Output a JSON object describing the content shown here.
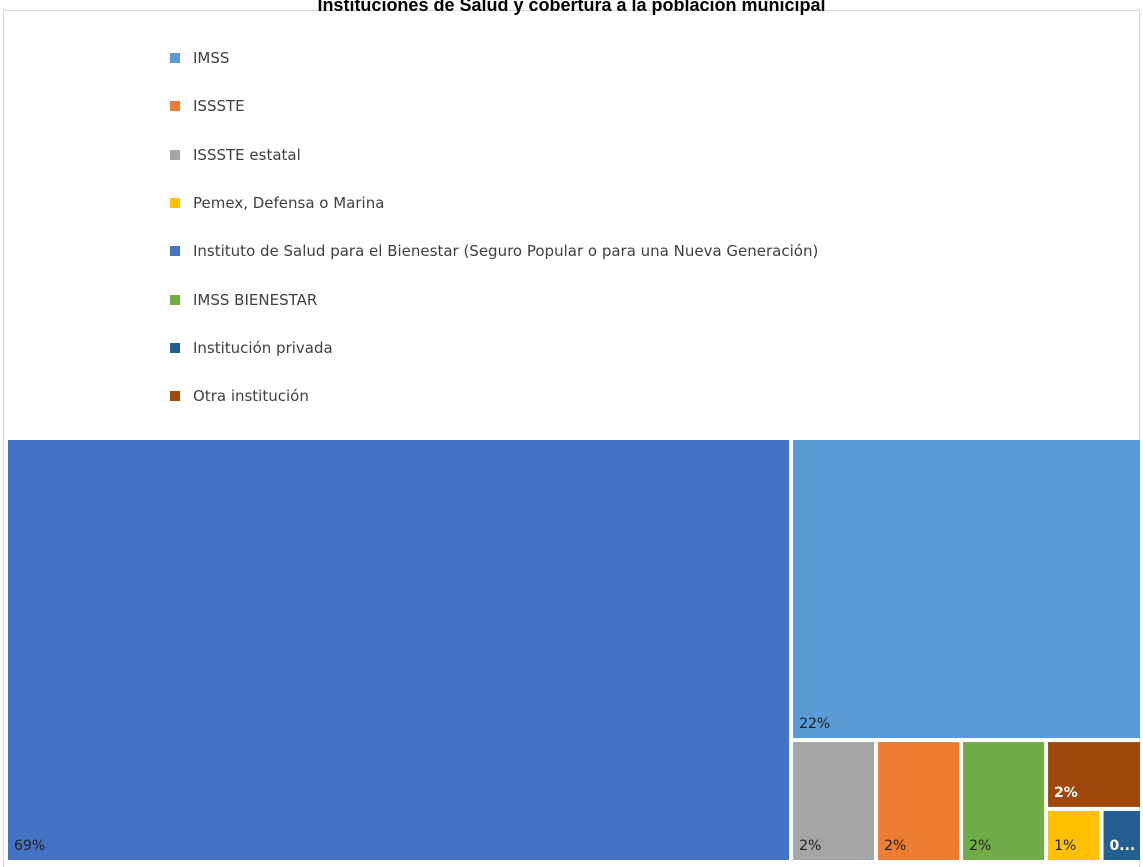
{
  "chart_data": {
    "type": "treemap",
    "title": "Instituciones de Salud y cobertura a la población municipal",
    "legend_position": "top",
    "series": [
      {
        "name": "Instituto de Salud para el Bienestar (Seguro Popular o para una Nueva Generación)",
        "value": 69,
        "label": "69%",
        "color": "#4472C4",
        "label_color": "#1f1f1f"
      },
      {
        "name": "IMSS",
        "value": 22,
        "label": "22%",
        "color": "#5B9BD5",
        "label_color": "#1f1f1f"
      },
      {
        "name": "ISSSTE estatal",
        "value": 2,
        "label": "2%",
        "color": "#A5A5A5",
        "label_color": "#1f1f1f"
      },
      {
        "name": "ISSSTE",
        "value": 2,
        "label": "2%",
        "color": "#ED7D31",
        "label_color": "#1f1f1f"
      },
      {
        "name": "IMSS BIENESTAR",
        "value": 2,
        "label": "2%",
        "color": "#70AD47",
        "label_color": "#1f1f1f"
      },
      {
        "name": "Otra institución",
        "value": 2,
        "label": "2%",
        "color": "#9E480E",
        "label_color": "#ffffff"
      },
      {
        "name": "Pemex, Defensa o Marina",
        "value": 1,
        "label": "1%",
        "color": "#FFC000",
        "label_color": "#1f1f1f"
      },
      {
        "name": "Institución privada",
        "value": 0,
        "label": "0...",
        "color": "#255E91",
        "label_color": "#ffffff"
      }
    ],
    "legend": [
      {
        "label": "IMSS",
        "color": "#5B9BD5"
      },
      {
        "label": "ISSSTE",
        "color": "#ED7D31"
      },
      {
        "label": "ISSSTE estatal",
        "color": "#A5A5A5"
      },
      {
        "label": "Pemex, Defensa o Marina",
        "color": "#FFC000"
      },
      {
        "label": "Instituto de Salud para el Bienestar (Seguro Popular o para una Nueva Generación)",
        "color": "#4472C4"
      },
      {
        "label": "IMSS BIENESTAR",
        "color": "#70AD47"
      },
      {
        "label": "Institución privada",
        "color": "#255E91"
      },
      {
        "label": "Otra institución",
        "color": "#9E480E"
      }
    ]
  }
}
